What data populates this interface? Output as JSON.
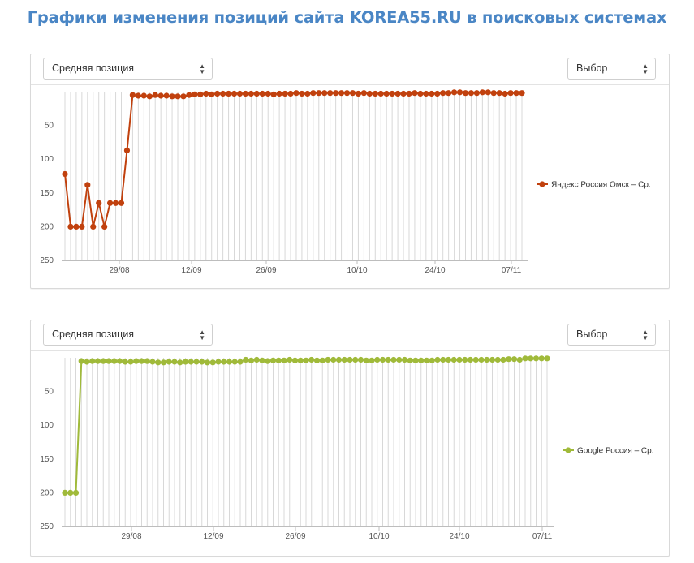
{
  "page_title": "Графики изменения позиций сайта KOREA55.RU в поисковых системах",
  "charts": [
    {
      "metric_select": "Средняя позиция",
      "choice_select": "Выбор",
      "color": "#c1410e",
      "chart_data": {
        "type": "line",
        "y_ticks": [
          50,
          100,
          150,
          200,
          250
        ],
        "y_reversed": true,
        "ylim": [
          0,
          250
        ],
        "x_ticks": [
          "29/08",
          "12/09",
          "26/09",
          "10/10",
          "24/10",
          "07/11"
        ],
        "legend": "Яндекс Россия Омск – Ср.",
        "legend_position": "right",
        "grid": "vertical",
        "series": [
          {
            "name": "Яндекс Россия Омск – Ср.",
            "values": [
              122,
              200,
              200,
              200,
              138,
              200,
              165,
              200,
              165,
              165,
              165,
              87,
              5,
              6,
              6,
              7,
              5,
              6,
              6,
              7,
              7,
              7,
              5,
              4,
              4,
              3,
              4,
              3,
              3,
              3,
              3,
              3,
              3,
              3,
              3,
              3,
              3,
              4,
              3,
              3,
              3,
              2,
              3,
              3,
              2,
              2,
              2,
              2,
              2,
              2,
              2,
              2,
              3,
              2,
              3,
              3,
              3,
              3,
              3,
              3,
              3,
              3,
              2,
              3,
              3,
              3,
              3,
              2,
              2,
              1,
              1,
              2,
              2,
              2,
              1,
              1,
              2,
              2,
              3,
              2,
              2,
              2
            ]
          }
        ]
      }
    },
    {
      "metric_select": "Средняя позиция",
      "choice_select": "Выбор",
      "color": "#a0ba3a",
      "chart_data": {
        "type": "line",
        "y_ticks": [
          50,
          100,
          150,
          200,
          250
        ],
        "y_reversed": true,
        "ylim": [
          0,
          250
        ],
        "x_ticks": [
          "29/08",
          "12/09",
          "26/09",
          "10/10",
          "24/10",
          "07/11"
        ],
        "legend": "Google Россия – Ср.",
        "legend_position": "right",
        "grid": "vertical",
        "series": [
          {
            "name": "Google Россия – Ср.",
            "values": [
              200,
              200,
              200,
              5,
              6,
              5,
              5,
              5,
              5,
              5,
              5,
              6,
              6,
              5,
              5,
              5,
              6,
              7,
              7,
              6,
              6,
              7,
              6,
              6,
              6,
              6,
              7,
              7,
              6,
              6,
              6,
              6,
              6,
              3,
              4,
              3,
              4,
              5,
              4,
              4,
              4,
              3,
              4,
              4,
              4,
              3,
              4,
              4,
              3,
              3,
              3,
              3,
              3,
              3,
              3,
              4,
              4,
              3,
              3,
              3,
              3,
              3,
              3,
              4,
              4,
              4,
              4,
              4,
              3,
              3,
              3,
              3,
              3,
              3,
              3,
              3,
              3,
              3,
              3,
              3,
              3,
              2,
              2,
              3,
              1,
              1,
              1,
              1,
              1
            ]
          }
        ]
      }
    }
  ]
}
